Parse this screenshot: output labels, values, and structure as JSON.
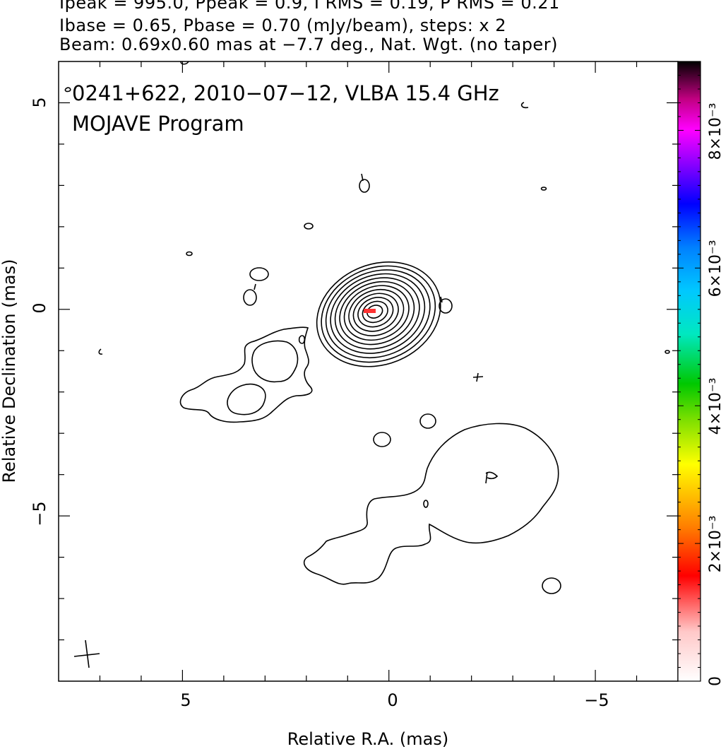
{
  "header": {
    "line1": "Ipeak = 995.0, Ppeak = 0.9, I RMS = 0.19, P RMS = 0.21",
    "line2": "Ibase = 0.65, Pbase = 0.70 (mJy/beam), steps: x 2",
    "line3": "Beam: 0.69x0.60 mas at −7.7 deg., Nat. Wgt. (no taper)"
  },
  "chart_data": {
    "type": "contour",
    "title": "0241+622, 2010−07−12, VLBA 15.4 GHz",
    "subtitle": "MOJAVE Program",
    "xlabel": "Relative R.A. (mas)",
    "ylabel": "Relative Declination (mas)",
    "xlim": [
      8.0,
      -7.0
    ],
    "ylim": [
      -9.0,
      6.0
    ],
    "x_ticks": [
      5,
      0,
      -5
    ],
    "x_tick_labels": [
      "5",
      "0",
      "−5"
    ],
    "y_ticks": [
      5,
      0,
      -5
    ],
    "y_tick_labels": [
      "5",
      "0",
      "−5"
    ],
    "colorbar": {
      "range": [
        0,
        0.009
      ],
      "ticks": [
        0,
        0.002,
        0.004,
        0.006,
        0.008
      ],
      "tick_labels": [
        "0",
        "2×10⁻³",
        "4×10⁻³",
        "6×10⁻³",
        "8×10⁻³"
      ],
      "colors": [
        "#ffffff",
        "#ff0000",
        "#ff8800",
        "#ffff00",
        "#00cc00",
        "#00ffff",
        "#0000ff",
        "#ff00ff",
        "#000000"
      ]
    },
    "core": {
      "x": 0.35,
      "y": -0.05,
      "contour_levels": 12
    },
    "polarization_vectors": [
      {
        "x": 0.5,
        "y": -0.1,
        "color": "#ff3333"
      }
    ],
    "beam": {
      "major": 0.69,
      "minor": 0.6,
      "pa": -7.7
    }
  }
}
